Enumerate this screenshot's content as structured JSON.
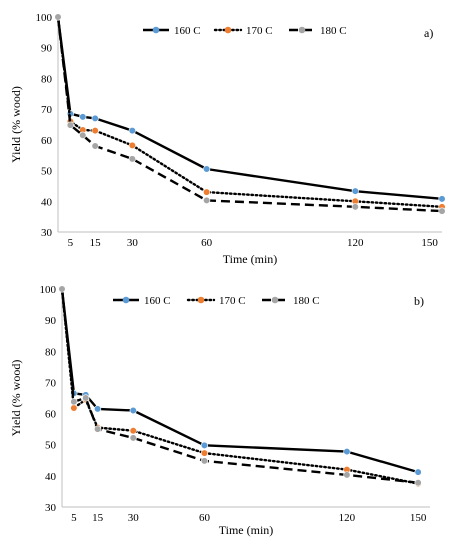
{
  "chart_data": [
    {
      "type": "line",
      "panel_label": "a)",
      "xlabel": "Time (min)",
      "ylabel": "Yield (% wood)",
      "ylim": [
        30,
        100
      ],
      "yticks": [
        30,
        40,
        50,
        60,
        70,
        80,
        90,
        100
      ],
      "xlim": [
        0,
        155
      ],
      "xticks": [
        5,
        15,
        30,
        60,
        120,
        150
      ],
      "grid": false,
      "legend_position": "top",
      "series": [
        {
          "name": "160 C",
          "x": [
            0,
            5,
            10,
            15,
            30,
            60,
            120,
            155
          ],
          "y": [
            100,
            68.5,
            67.5,
            67,
            63,
            50.5,
            43.3,
            40.8
          ],
          "color": "#000000",
          "marker_color": "#5b9bd5",
          "style": "solid"
        },
        {
          "name": "170 C",
          "x": [
            0,
            5,
            10,
            15,
            30,
            60,
            120,
            155
          ],
          "y": [
            100,
            66,
            63.2,
            63,
            58.2,
            43,
            40,
            38.2
          ],
          "color": "#000000",
          "marker_color": "#ed7d31",
          "style": "dotted"
        },
        {
          "name": "180 C",
          "x": [
            0,
            5,
            10,
            15,
            30,
            60,
            120,
            155
          ],
          "y": [
            100,
            64.8,
            61.5,
            58,
            53.8,
            40.3,
            38.2,
            36.8
          ],
          "color": "#000000",
          "marker_color": "#a5a5a5",
          "style": "dashed"
        }
      ]
    },
    {
      "type": "line",
      "panel_label": "b)",
      "xlabel": "Time (min)",
      "ylabel": "Yield (% wood)",
      "ylim": [
        30,
        100
      ],
      "yticks": [
        30,
        40,
        50,
        60,
        70,
        80,
        90,
        100
      ],
      "xlim": [
        0,
        155
      ],
      "xticks": [
        5,
        15,
        30,
        60,
        120,
        150
      ],
      "grid": false,
      "legend_position": "top",
      "series": [
        {
          "name": "160 C",
          "x": [
            0,
            5,
            10,
            15,
            30,
            60,
            120,
            150
          ],
          "y": [
            100,
            66.5,
            66,
            61.5,
            61,
            49.8,
            47.8,
            41.2
          ],
          "color": "#000000",
          "marker_color": "#5b9bd5",
          "style": "solid"
        },
        {
          "name": "170 C",
          "x": [
            0,
            5,
            10,
            15,
            30,
            60,
            120,
            150
          ],
          "y": [
            100,
            61.8,
            64.5,
            55.5,
            54.5,
            47.3,
            42,
            37.5
          ],
          "color": "#000000",
          "marker_color": "#ed7d31",
          "style": "dotted"
        },
        {
          "name": "180 C",
          "x": [
            0,
            5,
            10,
            15,
            30,
            60,
            120,
            150
          ],
          "y": [
            100,
            63.8,
            65,
            55,
            52.2,
            44.8,
            40.3,
            37.8
          ],
          "color": "#000000",
          "marker_color": "#a5a5a5",
          "style": "dashed"
        }
      ]
    }
  ]
}
